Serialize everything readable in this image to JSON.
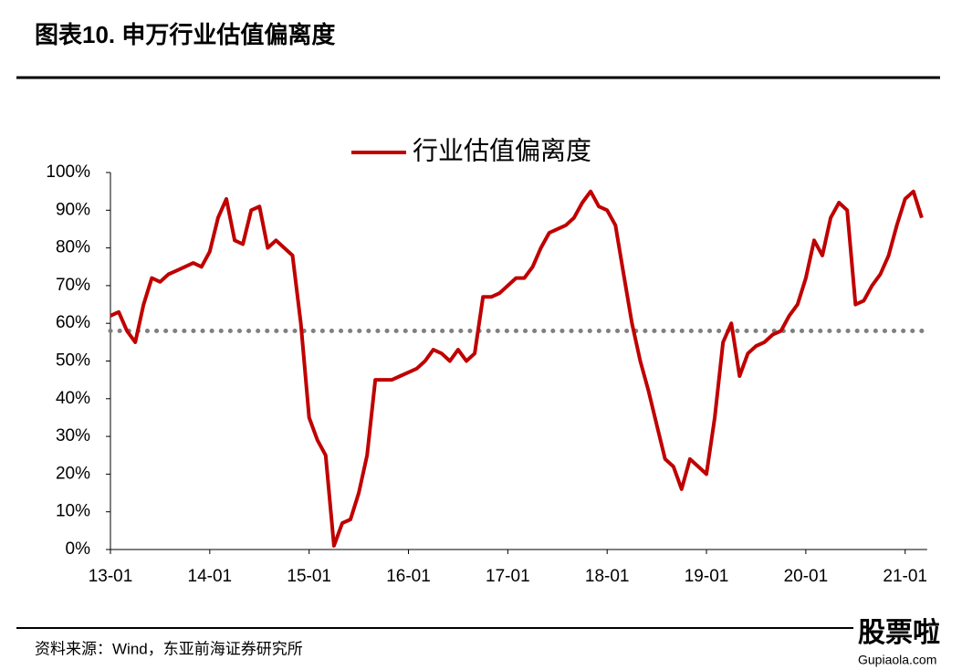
{
  "header": {
    "title": "图表10.  申万行业估值偏离度"
  },
  "chart_data": {
    "type": "line",
    "x": [
      "13-01",
      "13-02",
      "13-03",
      "13-04",
      "13-05",
      "13-06",
      "13-07",
      "13-08",
      "13-09",
      "13-10",
      "13-11",
      "13-12",
      "14-01",
      "14-02",
      "14-03",
      "14-04",
      "14-05",
      "14-06",
      "14-07",
      "14-08",
      "14-09",
      "14-10",
      "14-11",
      "14-12",
      "15-01",
      "15-02",
      "15-03",
      "15-04",
      "15-05",
      "15-06",
      "15-07",
      "15-08",
      "15-09",
      "15-10",
      "15-11",
      "15-12",
      "16-01",
      "16-02",
      "16-03",
      "16-04",
      "16-05",
      "16-06",
      "16-07",
      "16-08",
      "16-09",
      "16-10",
      "16-11",
      "16-12",
      "17-01",
      "17-02",
      "17-03",
      "17-04",
      "17-05",
      "17-06",
      "17-07",
      "17-08",
      "17-09",
      "17-10",
      "17-11",
      "17-12",
      "18-01",
      "18-02",
      "18-03",
      "18-04",
      "18-05",
      "18-06",
      "18-07",
      "18-08",
      "18-09",
      "18-10",
      "18-11",
      "18-12",
      "19-01",
      "19-02",
      "19-03",
      "19-04",
      "19-05",
      "19-06",
      "19-07",
      "19-08",
      "19-09",
      "19-10",
      "19-11",
      "19-12",
      "20-01",
      "20-02",
      "20-03",
      "20-04",
      "20-05",
      "20-06",
      "20-07",
      "20-08",
      "20-09",
      "20-10",
      "20-11",
      "20-12",
      "21-01",
      "21-02",
      "21-03"
    ],
    "series": [
      {
        "name": "行业估值偏离度",
        "color": "#c00000",
        "values": [
          62,
          63,
          58,
          55,
          65,
          72,
          71,
          73,
          74,
          75,
          76,
          75,
          79,
          88,
          93,
          82,
          81,
          90,
          91,
          80,
          82,
          80,
          78,
          60,
          35,
          29,
          25,
          1,
          7,
          8,
          15,
          25,
          45,
          45,
          45,
          46,
          47,
          48,
          50,
          53,
          52,
          50,
          53,
          50,
          52,
          67,
          67,
          68,
          70,
          72,
          72,
          75,
          80,
          84,
          85,
          86,
          88,
          92,
          95,
          91,
          90,
          86,
          73,
          60,
          50,
          42,
          33,
          24,
          22,
          16,
          24,
          22,
          20,
          35,
          55,
          60,
          46,
          52,
          54,
          55,
          57,
          58,
          62,
          65,
          72,
          82,
          78,
          88,
          92,
          90,
          65,
          66,
          70,
          73,
          78,
          86,
          93,
          95,
          88
        ]
      }
    ],
    "reference_line": {
      "value": 58,
      "color": "#808080"
    },
    "ylim": [
      0,
      100
    ],
    "yticks": [
      {
        "value": 0,
        "label": "0%"
      },
      {
        "value": 10,
        "label": "10%"
      },
      {
        "value": 20,
        "label": "20%"
      },
      {
        "value": 30,
        "label": "30%"
      },
      {
        "value": 40,
        "label": "40%"
      },
      {
        "value": 50,
        "label": "50%"
      },
      {
        "value": 60,
        "label": "60%"
      },
      {
        "value": 70,
        "label": "70%"
      },
      {
        "value": 80,
        "label": "80%"
      },
      {
        "value": 90,
        "label": "90%"
      },
      {
        "value": 100,
        "label": "100%"
      }
    ],
    "grid": false
  },
  "footer": {
    "source": "资料来源：Wind，东亚前海证券研究所",
    "watermark": "股票啦",
    "watermark_url": "Gupiaola.com"
  }
}
